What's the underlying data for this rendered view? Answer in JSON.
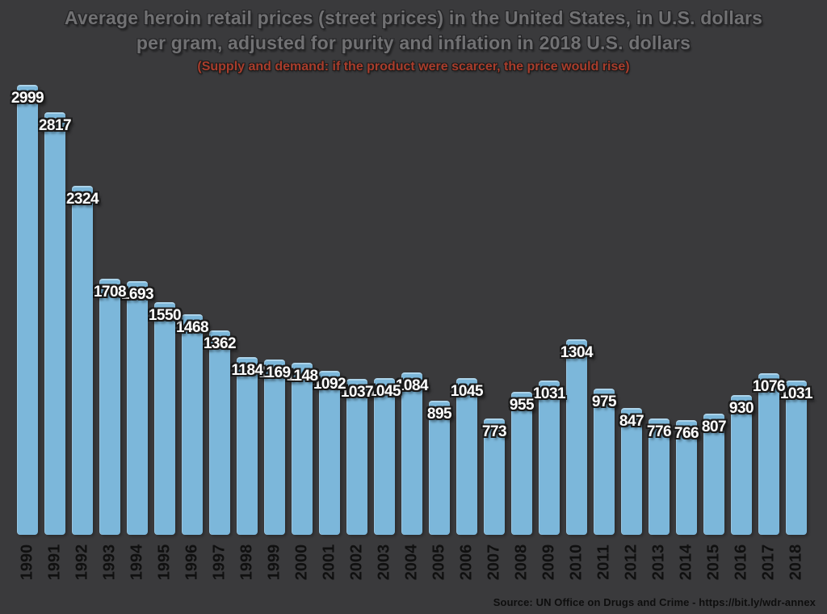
{
  "header": {
    "title_line1": "Average heroin retail prices (street prices) in the United States, in U.S. dollars",
    "title_line2": "per gram, adjusted for purity and inflation in 2018 U.S. dollars",
    "subtitle": "(Supply and demand: if the product were scarcer, the price would rise)"
  },
  "footer": {
    "source": "Source: UN Office on Drugs and Crime - https://bit.ly/wdr-annex"
  },
  "colors": {
    "background": "#3a3a3c",
    "bar": "#7cb7da",
    "bar_highlight": "#abd3ea",
    "value_label": "#ffffff",
    "value_label_outline": "#1b1b1b",
    "title": "#717173",
    "subtitle": "#a93d2c",
    "year_label": "#101010",
    "source": "#0e0e0e"
  },
  "chart_data": {
    "type": "bar",
    "title": "Average heroin retail prices (street prices) in the United States, in U.S. dollars per gram, adjusted for purity and inflation in 2018 U.S. dollars",
    "subtitle": "(Supply and demand: if the product were scarcer, the price would rise)",
    "source": "Source: UN Office on Drugs and Crime - https://bit.ly/wdr-annex",
    "xlabel": "",
    "ylabel": "",
    "ylim": [
      0,
      3000
    ],
    "grid": false,
    "legend": "none",
    "value_labels": true,
    "categories": [
      "1990",
      "1991",
      "1992",
      "1993",
      "1994",
      "1995",
      "1996",
      "1997",
      "1998",
      "1999",
      "2000",
      "2001",
      "2002",
      "2003",
      "2004",
      "2005",
      "2006",
      "2007",
      "2008",
      "2009",
      "2010",
      "2011",
      "2012",
      "2013",
      "2014",
      "2015",
      "2016",
      "2017",
      "2018"
    ],
    "values": [
      2999,
      2817,
      2324,
      1708,
      1693,
      1550,
      1468,
      1362,
      1184,
      1169,
      1148,
      1092,
      1037,
      1045,
      1084,
      895,
      1045,
      773,
      955,
      1031,
      1304,
      975,
      847,
      776,
      766,
      807,
      930,
      1076,
      1031
    ]
  }
}
